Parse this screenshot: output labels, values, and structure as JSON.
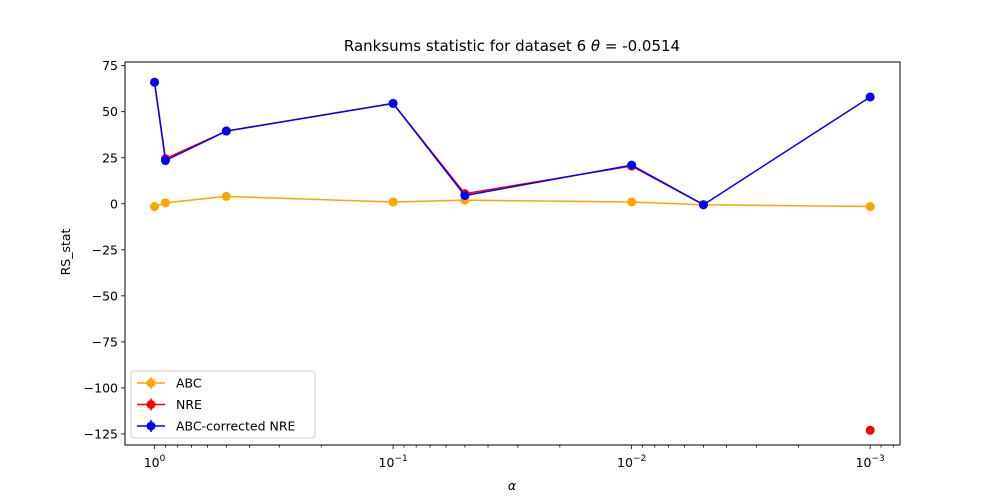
{
  "chart_data": {
    "type": "line",
    "title_prefix": "Ranksums statistic for dataset 6 ",
    "title_theta": "θ",
    "title_suffix": " =  -0.0514",
    "xlabel": "α",
    "ylabel": "RS_stat",
    "x_scale": "log-reversed",
    "xlim": [
      1.33,
      0.00075
    ],
    "ylim": [
      -131,
      77
    ],
    "x_ticks": [
      {
        "value": 1,
        "base": "10",
        "exp": "0"
      },
      {
        "value": 0.1,
        "base": "10",
        "exp": "−1"
      },
      {
        "value": 0.01,
        "base": "10",
        "exp": "−2"
      },
      {
        "value": 0.001,
        "base": "10",
        "exp": "−3"
      }
    ],
    "y_ticks": [
      75,
      50,
      25,
      0,
      -25,
      -50,
      -75,
      -100,
      -125
    ],
    "y_tick_labels": [
      "75",
      "50",
      "25",
      "0",
      "−25",
      "−50",
      "−75",
      "−100",
      "−125"
    ],
    "x": [
      1,
      0.9,
      0.5,
      0.1,
      0.05,
      0.01,
      0.005,
      0.001
    ],
    "series": [
      {
        "name": "ABC",
        "color": "#ffa500",
        "values": [
          -1.5,
          0.5,
          4,
          1,
          2,
          1,
          -0.5,
          -1.5
        ],
        "connected_points": 8
      },
      {
        "name": "NRE",
        "color": "#ff0000",
        "values": [
          66,
          24.5,
          39.5,
          54.5,
          5.5,
          20.5,
          -0.5,
          -123
        ],
        "connected_points": 7
      },
      {
        "name": "ABC-corrected NRE",
        "color": "#0000ff",
        "values": [
          66,
          23.5,
          39.5,
          54.5,
          4.5,
          21,
          -0.5,
          58
        ],
        "connected_points": 8
      }
    ],
    "legend": {
      "position": "lower-left"
    },
    "grid": false
  }
}
